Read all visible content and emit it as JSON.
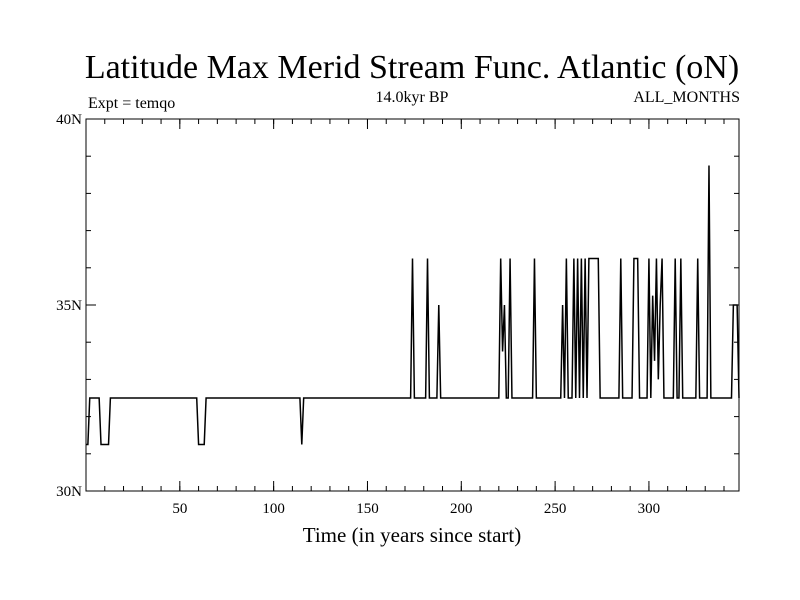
{
  "chart_data": {
    "type": "line",
    "title": "Latitude Max Merid Stream Func. Atlantic (oN)",
    "subtitle_left": "Expt = temqo",
    "subtitle_center": "14.0kyr BP",
    "subtitle_right": "ALL_MONTHS",
    "xlabel": "Time (in years since start)",
    "ylabel": "",
    "xlim": [
      0,
      348
    ],
    "ylim": [
      30,
      40
    ],
    "x_ticks": [
      50,
      100,
      150,
      200,
      250,
      300
    ],
    "y_ticks": [
      {
        "value": 30,
        "label": "30N"
      },
      {
        "value": 35,
        "label": "35N"
      },
      {
        "value": 40,
        "label": "40N"
      }
    ],
    "y_minor_step": 1,
    "x_minor_step": 10,
    "grid": false,
    "series": [
      {
        "name": "",
        "color": "#000000",
        "points": [
          [
            0,
            31.25
          ],
          [
            1,
            31.25
          ],
          [
            2,
            32.5
          ],
          [
            7,
            32.5
          ],
          [
            8,
            31.25
          ],
          [
            12,
            31.25
          ],
          [
            13,
            32.5
          ],
          [
            59,
            32.5
          ],
          [
            60,
            31.25
          ],
          [
            63,
            31.25
          ],
          [
            64,
            32.5
          ],
          [
            114,
            32.5
          ],
          [
            115,
            31.25
          ],
          [
            116,
            32.5
          ],
          [
            173,
            32.5
          ],
          [
            174,
            36.25
          ],
          [
            175,
            32.5
          ],
          [
            181,
            32.5
          ],
          [
            182,
            36.25
          ],
          [
            183,
            32.5
          ],
          [
            187,
            32.5
          ],
          [
            188,
            35.0
          ],
          [
            189,
            32.5
          ],
          [
            220,
            32.5
          ],
          [
            221,
            36.25
          ],
          [
            222,
            33.75
          ],
          [
            223,
            35.0
          ],
          [
            224,
            32.5
          ],
          [
            225,
            32.5
          ],
          [
            226,
            36.25
          ],
          [
            227,
            32.5
          ],
          [
            238,
            32.5
          ],
          [
            239,
            36.25
          ],
          [
            240,
            32.5
          ],
          [
            253,
            32.5
          ],
          [
            254,
            35.0
          ],
          [
            255,
            32.5
          ],
          [
            256,
            36.25
          ],
          [
            257,
            32.5
          ],
          [
            259,
            32.5
          ],
          [
            260,
            36.25
          ],
          [
            261,
            32.5
          ],
          [
            262,
            36.25
          ],
          [
            263,
            32.5
          ],
          [
            264,
            36.25
          ],
          [
            265,
            32.5
          ],
          [
            266,
            36.25
          ],
          [
            267,
            32.5
          ],
          [
            268,
            36.25
          ],
          [
            273,
            36.25
          ],
          [
            274,
            32.5
          ],
          [
            284,
            32.5
          ],
          [
            285,
            36.25
          ],
          [
            286,
            32.5
          ],
          [
            291,
            32.5
          ],
          [
            292,
            36.25
          ],
          [
            294,
            36.25
          ],
          [
            295,
            32.5
          ],
          [
            299,
            32.5
          ],
          [
            300,
            36.25
          ],
          [
            301,
            32.5
          ],
          [
            302,
            35.25
          ],
          [
            303,
            33.5
          ],
          [
            304,
            36.25
          ],
          [
            305,
            33.0
          ],
          [
            306,
            35.0
          ],
          [
            307,
            36.25
          ],
          [
            308,
            32.5
          ],
          [
            313,
            32.5
          ],
          [
            314,
            36.25
          ],
          [
            315,
            32.5
          ],
          [
            316,
            32.5
          ],
          [
            317,
            36.25
          ],
          [
            318,
            32.5
          ],
          [
            325,
            32.5
          ],
          [
            326,
            36.25
          ],
          [
            327,
            32.5
          ],
          [
            331,
            32.5
          ],
          [
            332,
            38.75
          ],
          [
            333,
            32.5
          ],
          [
            344,
            32.5
          ],
          [
            345,
            35.0
          ],
          [
            347,
            35.0
          ],
          [
            348,
            32.5
          ]
        ]
      }
    ]
  }
}
